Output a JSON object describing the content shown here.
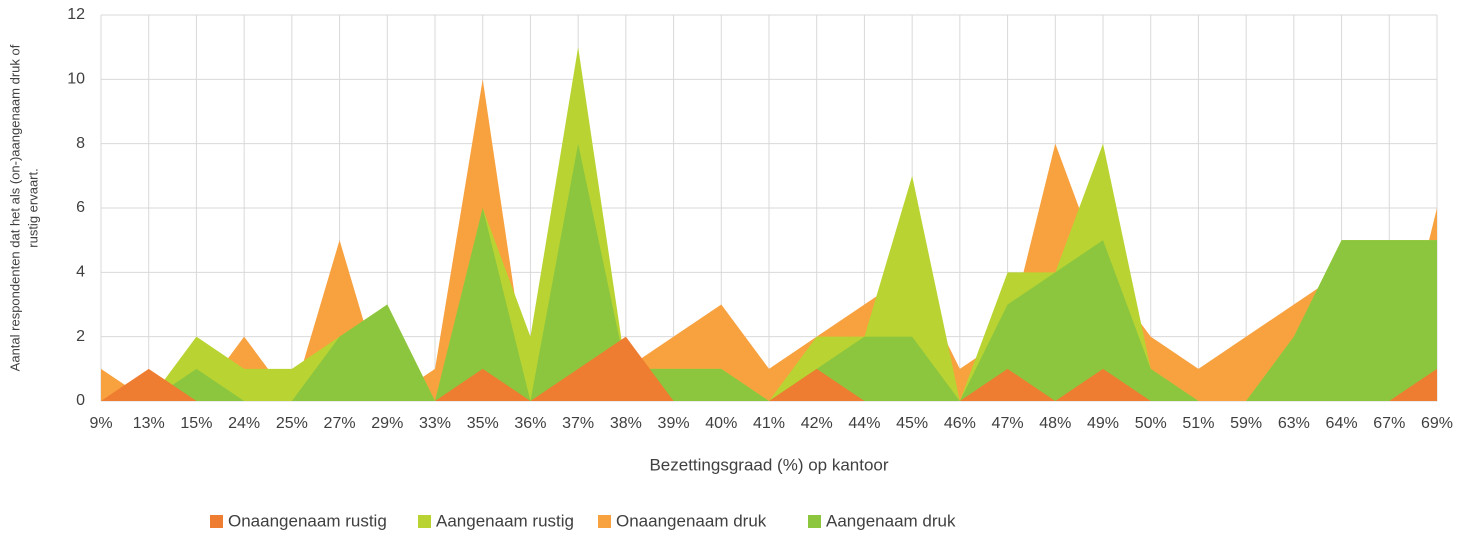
{
  "chart_data": {
    "type": "area",
    "x_label": "Bezettingsgraad (%) op kantoor",
    "y_label": [
      "Aantal respondenten dat het als (on-)aangenaam druk of",
      "rustig ervaart."
    ],
    "categories": [
      "9%",
      "13%",
      "15%",
      "24%",
      "25%",
      "27%",
      "29%",
      "33%",
      "35%",
      "36%",
      "37%",
      "38%",
      "39%",
      "40%",
      "41%",
      "42%",
      "44%",
      "45%",
      "46%",
      "47%",
      "48%",
      "49%",
      "50%",
      "51%",
      "59%",
      "63%",
      "64%",
      "67%",
      "69%"
    ],
    "series": [
      {
        "name": "Onaangenaam druk",
        "color": "#f8a13f",
        "values": [
          1,
          0,
          0,
          2,
          0,
          5,
          0,
          1,
          10,
          0,
          0,
          1,
          2,
          3,
          1,
          2,
          3,
          4,
          1,
          2,
          8,
          4,
          2,
          1,
          2,
          3,
          4,
          0,
          6
        ]
      },
      {
        "name": "Aangenaam rustig",
        "color": "#b9d432",
        "values": [
          0,
          0,
          2,
          1,
          1,
          2,
          3,
          0,
          6,
          2,
          11,
          1,
          1,
          1,
          0,
          2,
          2,
          7,
          0,
          4,
          4,
          8,
          1,
          0,
          0,
          2,
          5,
          5,
          5
        ]
      },
      {
        "name": "Aangenaam druk",
        "color": "#8cc63f",
        "values": [
          0,
          0,
          1,
          0,
          0,
          2,
          3,
          0,
          6,
          0,
          8,
          1,
          1,
          1,
          0,
          1,
          2,
          2,
          0,
          3,
          4,
          5,
          1,
          0,
          0,
          2,
          5,
          5,
          5
        ]
      },
      {
        "name": "Onaangenaam rustig",
        "color": "#ee7d31",
        "values": [
          0,
          1,
          0,
          0,
          0,
          0,
          0,
          0,
          1,
          0,
          1,
          2,
          0,
          0,
          0,
          1,
          0,
          0,
          0,
          1,
          0,
          1,
          0,
          0,
          0,
          0,
          0,
          0,
          1
        ]
      }
    ],
    "ylim": [
      0,
      12
    ],
    "yticks": [
      0,
      2,
      4,
      6,
      8,
      10,
      12
    ],
    "grid": true
  }
}
